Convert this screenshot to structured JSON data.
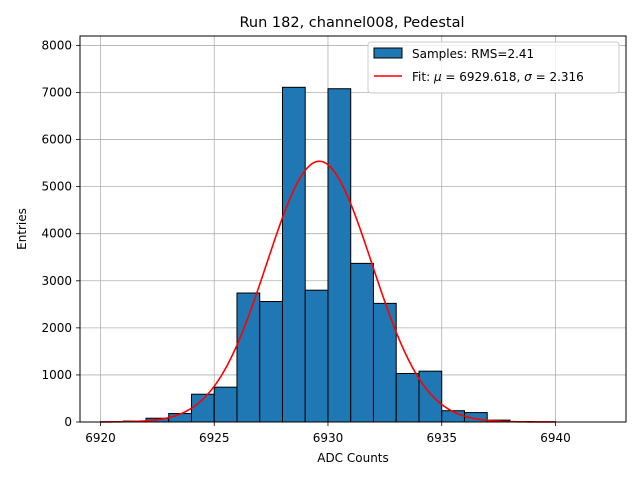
{
  "chart_data": {
    "type": "bar",
    "title": "Run 182, channel008, Pedestal",
    "xlabel": "ADC Counts",
    "ylabel": "Entries",
    "xlim": [
      6919.1,
      6943.1
    ],
    "ylim": [
      0,
      8200
    ],
    "grid": true,
    "legend_placement": "top-right",
    "x_ticks": [
      6920,
      6925,
      6930,
      6935,
      6940
    ],
    "y_ticks": [
      0,
      1000,
      2000,
      3000,
      4000,
      5000,
      6000,
      7000,
      8000
    ],
    "histogram": {
      "bin_edges": [
        6920,
        6921,
        6922,
        6923,
        6924,
        6925,
        6926,
        6927,
        6928,
        6929,
        6930,
        6931,
        6932,
        6933,
        6934,
        6935,
        6936,
        6937,
        6938,
        6939,
        6940,
        6941,
        6942
      ],
      "counts": [
        5,
        20,
        80,
        180,
        590,
        740,
        2740,
        2560,
        7110,
        2800,
        7080,
        3370,
        2520,
        1030,
        1080,
        240,
        200,
        40,
        10,
        5,
        0,
        0
      ],
      "color": "#1f77b4",
      "edgecolor": "#000000"
    },
    "fit": {
      "mu": 6929.618,
      "sigma": 2.316,
      "amplitude": 5540,
      "x_range": [
        6920,
        6940
      ],
      "color": "#ff0000"
    },
    "legend": [
      {
        "label": "Samples: RMS=2.41",
        "kind": "patch",
        "color": "#1f77b4"
      },
      {
        "label_prefix": "Fit: ",
        "mu_symbol": "μ",
        "mu_text": " = 6929.618, ",
        "sigma_symbol": "σ",
        "sigma_text": " = 2.316",
        "kind": "line",
        "color": "#ff0000"
      }
    ]
  }
}
